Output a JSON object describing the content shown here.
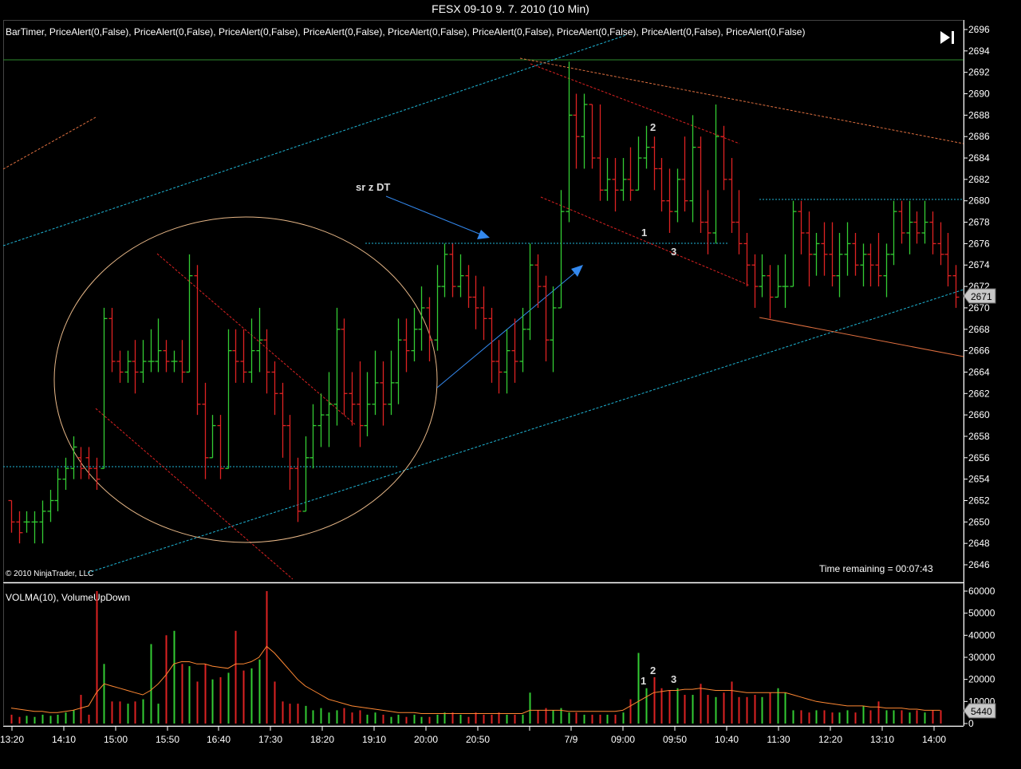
{
  "window": {
    "title": "FESX 09-10  9. 7. 2010 (10 Min)"
  },
  "price_panel": {
    "indicators": "BarTimer, PriceAlert(0,False), PriceAlert(0,False), PriceAlert(0,False), PriceAlert(0,False), PriceAlert(0,False), PriceAlert(0,False), PriceAlert(0,False), PriceAlert(0,False), PriceAlert(0,False)",
    "copyright": "© 2010 NinjaTrader, LLC",
    "time_remaining": "Time remaining = 00:07:43",
    "last_price_label": "2671",
    "annotation_text": "sr z DT",
    "wave_labels": [
      "1",
      "2",
      "3"
    ]
  },
  "volume_panel": {
    "indicators": "VOLMA(10), VolumeUpDown",
    "last_volume_label": "5440"
  },
  "colors": {
    "up_bar": "#33cc33",
    "down_bar": "#dd2222",
    "cyan_line": "#1fb6d6",
    "orange_line": "#e07040",
    "ellipse": "#e8b888",
    "arrow": "#3388ee",
    "volma": "#ff8833",
    "axis": "#ffffff"
  },
  "icons": {
    "play_to_end": "skip-to-end-icon"
  },
  "chart_data": [
    {
      "type": "ohlc",
      "panel": "price",
      "ylim": [
        2645,
        2697
      ],
      "y_ticks": [
        "2696",
        "2694",
        "2692",
        "2690",
        "2688",
        "2686",
        "2684",
        "2682",
        "2680",
        "2678",
        "2676",
        "2674",
        "2672",
        "2670",
        "2668",
        "2666",
        "2664",
        "2662",
        "2660",
        "2658",
        "2656",
        "2654",
        "2652",
        "2650",
        "2648",
        "2646"
      ],
      "x_ticks": [
        "13:20",
        "14:10",
        "15:00",
        "15:50",
        "16:40",
        "17:30",
        "18:20",
        "19:10",
        "20:00",
        "20:50",
        "7/9",
        "09:00",
        "09:50",
        "10:40",
        "11:30",
        "12:20",
        "13:10",
        "14:00"
      ],
      "bars": [
        [
          2652,
          2652,
          2649,
          2650
        ],
        [
          2650,
          2651,
          2648,
          2649
        ],
        [
          2650,
          2651,
          2649,
          2650
        ],
        [
          2650,
          2651,
          2648,
          2650
        ],
        [
          2650,
          2652,
          2648,
          2651
        ],
        [
          2651,
          2653,
          2650,
          2652
        ],
        [
          2652,
          2655,
          2651,
          2654
        ],
        [
          2654,
          2656,
          2653,
          2655
        ],
        [
          2655,
          2658,
          2654,
          2657
        ],
        [
          2656,
          2657,
          2654,
          2655
        ],
        [
          2656,
          2657,
          2654,
          2655
        ],
        [
          2655,
          2656,
          2653,
          2654
        ],
        [
          2655,
          2670,
          2655,
          2669
        ],
        [
          2669,
          2670,
          2664,
          2665
        ],
        [
          2665,
          2666,
          2663,
          2664
        ],
        [
          2664,
          2666,
          2663,
          2665
        ],
        [
          2665,
          2667,
          2662,
          2664
        ],
        [
          2664,
          2667,
          2663,
          2665
        ],
        [
          2665,
          2668,
          2664,
          2665
        ],
        [
          2665,
          2669,
          2664,
          2666
        ],
        [
          2666,
          2667,
          2664,
          2665
        ],
        [
          2665,
          2666,
          2664,
          2665
        ],
        [
          2665,
          2667,
          2663,
          2664
        ],
        [
          2664,
          2675,
          2664,
          2673
        ],
        [
          2673,
          2674,
          2660,
          2661
        ],
        [
          2661,
          2663,
          2654,
          2656
        ],
        [
          2656,
          2660,
          2656,
          2659
        ],
        [
          2659,
          2660,
          2654,
          2655
        ],
        [
          2655,
          2668,
          2655,
          2666
        ],
        [
          2666,
          2668,
          2663,
          2665
        ],
        [
          2665,
          2668,
          2663,
          2664
        ],
        [
          2664,
          2669,
          2663,
          2666
        ],
        [
          2666,
          2670,
          2664,
          2667
        ],
        [
          2667,
          2668,
          2662,
          2664
        ],
        [
          2664,
          2665,
          2660,
          2662
        ],
        [
          2662,
          2663,
          2656,
          2659
        ],
        [
          2659,
          2660,
          2653,
          2655
        ],
        [
          2655,
          2656,
          2650,
          2651
        ],
        [
          2651,
          2658,
          2651,
          2656
        ],
        [
          2656,
          2661,
          2655,
          2659
        ],
        [
          2659,
          2662,
          2657,
          2660
        ],
        [
          2660,
          2664,
          2657,
          2661
        ],
        [
          2661,
          2670,
          2659,
          2668
        ],
        [
          2668,
          2669,
          2660,
          2662
        ],
        [
          2662,
          2664,
          2659,
          2661
        ],
        [
          2661,
          2665,
          2657,
          2659
        ],
        [
          2659,
          2664,
          2658,
          2661
        ],
        [
          2661,
          2666,
          2660,
          2663
        ],
        [
          2663,
          2665,
          2659,
          2661
        ],
        [
          2661,
          2666,
          2660,
          2663
        ],
        [
          2663,
          2669,
          2661,
          2667
        ],
        [
          2667,
          2669,
          2664,
          2666
        ],
        [
          2666,
          2670,
          2665,
          2668
        ],
        [
          2668,
          2672,
          2666,
          2670
        ],
        [
          2670,
          2671,
          2665,
          2667
        ],
        [
          2667,
          2674,
          2666,
          2672
        ],
        [
          2672,
          2676,
          2671,
          2675
        ],
        [
          2675,
          2676,
          2671,
          2672
        ],
        [
          2672,
          2675,
          2671,
          2673
        ],
        [
          2673,
          2674,
          2670,
          2671
        ],
        [
          2671,
          2673,
          2668,
          2670
        ],
        [
          2670,
          2672,
          2667,
          2669
        ],
        [
          2669,
          2670,
          2663,
          2665
        ],
        [
          2665,
          2667,
          2662,
          2664
        ],
        [
          2664,
          2668,
          2662,
          2666
        ],
        [
          2666,
          2669,
          2663,
          2665
        ],
        [
          2665,
          2670,
          2664,
          2668
        ],
        [
          2668,
          2676,
          2667,
          2674
        ],
        [
          2674,
          2675,
          2670,
          2672
        ],
        [
          2672,
          2673,
          2665,
          2667
        ],
        [
          2667,
          2672,
          2664,
          2670
        ],
        [
          2670,
          2681,
          2670,
          2679
        ],
        [
          2679,
          2693,
          2678,
          2688
        ],
        [
          2688,
          2690,
          2683,
          2686
        ],
        [
          2686,
          2690,
          2683,
          2689
        ],
        [
          2689,
          2689,
          2683,
          2684
        ],
        [
          2684,
          2689,
          2680,
          2681
        ],
        [
          2681,
          2684,
          2680,
          2682
        ],
        [
          2682,
          2684,
          2679,
          2681
        ],
        [
          2681,
          2684,
          2680,
          2682
        ],
        [
          2682,
          2685,
          2680,
          2681
        ],
        [
          2681,
          2686,
          2681,
          2684
        ],
        [
          2684,
          2687,
          2683,
          2685
        ],
        [
          2685,
          2686,
          2681,
          2683
        ],
        [
          2683,
          2684,
          2679,
          2680
        ],
        [
          2680,
          2683,
          2677,
          2679
        ],
        [
          2679,
          2683,
          2678,
          2682
        ],
        [
          2682,
          2686,
          2679,
          2680
        ],
        [
          2680,
          2688,
          2678,
          2685
        ],
        [
          2685,
          2686,
          2677,
          2678
        ],
        [
          2678,
          2681,
          2675,
          2677
        ],
        [
          2677,
          2689,
          2676,
          2686
        ],
        [
          2686,
          2687,
          2681,
          2682
        ],
        [
          2682,
          2684,
          2677,
          2678
        ],
        [
          2678,
          2681,
          2675,
          2676
        ],
        [
          2676,
          2677,
          2672,
          2674
        ],
        [
          2674,
          2675,
          2670,
          2672
        ],
        [
          2672,
          2675,
          2671,
          2673
        ],
        [
          2673,
          2674,
          2669,
          2671
        ],
        [
          2671,
          2674,
          2671,
          2672
        ],
        [
          2672,
          2675,
          2670,
          2672
        ],
        [
          2672,
          2680,
          2672,
          2679
        ],
        [
          2679,
          2680,
          2675,
          2677
        ],
        [
          2677,
          2679,
          2672,
          2675
        ],
        [
          2675,
          2677,
          2673,
          2676
        ],
        [
          2676,
          2678,
          2673,
          2675
        ],
        [
          2675,
          2678,
          2672,
          2673
        ],
        [
          2673,
          2677,
          2671,
          2675
        ],
        [
          2675,
          2678,
          2673,
          2676
        ],
        [
          2676,
          2677,
          2673,
          2674
        ],
        [
          2674,
          2676,
          2672,
          2675
        ],
        [
          2675,
          2676,
          2672,
          2674
        ],
        [
          2674,
          2677,
          2672,
          2673
        ],
        [
          2673,
          2676,
          2671,
          2675
        ],
        [
          2675,
          2680,
          2674,
          2679
        ],
        [
          2679,
          2680,
          2676,
          2677
        ],
        [
          2677,
          2680,
          2675,
          2678
        ],
        [
          2678,
          2679,
          2676,
          2677
        ],
        [
          2677,
          2680,
          2676,
          2678
        ],
        [
          2678,
          2679,
          2675,
          2676
        ],
        [
          2676,
          2678,
          2674,
          2675
        ],
        [
          2675,
          2677,
          2672,
          2673
        ],
        [
          2673,
          2674,
          2670,
          2671
        ]
      ],
      "last_price": 2671,
      "annotations": [
        "sr z DT",
        "1",
        "2",
        "3"
      ]
    },
    {
      "type": "bar",
      "panel": "volume",
      "ylim": [
        0,
        61000
      ],
      "y_ticks": [
        "60000",
        "50000",
        "40000",
        "30000",
        "20000",
        "10000",
        "0"
      ],
      "values": [
        4000,
        3000,
        3500,
        3000,
        4000,
        3500,
        4000,
        5000,
        6000,
        13000,
        4000,
        60000,
        27000,
        10000,
        10000,
        9000,
        10000,
        11000,
        36000,
        9000,
        40000,
        42000,
        27000,
        26000,
        19000,
        27000,
        20000,
        21000,
        23000,
        42000,
        24000,
        25000,
        29000,
        60000,
        19000,
        10000,
        9000,
        9000,
        8000,
        6000,
        7000,
        5000,
        6000,
        7000,
        5000,
        6000,
        4000,
        5000,
        4000,
        3000,
        4000,
        3000,
        4000,
        3000,
        3000,
        4000,
        5000,
        5000,
        4000,
        3000,
        5000,
        4000,
        4000,
        5000,
        4000,
        4000,
        4000,
        14000,
        6000,
        7000,
        6000,
        7000,
        5000,
        5000,
        4000,
        4000,
        4000,
        4000,
        4000,
        5000,
        11000,
        32000,
        16000,
        21000,
        16000,
        15000,
        16000,
        13000,
        13000,
        18000,
        13000,
        12000,
        14000,
        19000,
        12000,
        12000,
        13000,
        12000,
        14000,
        16000,
        14000,
        6000,
        6000,
        5000,
        6000,
        6000,
        5000,
        5000,
        6000,
        5000,
        8000,
        6000,
        10000,
        6000,
        6000,
        6000,
        5000,
        6000,
        5000,
        6000,
        6000
      ],
      "volma": [
        7000,
        6500,
        6000,
        5500,
        5500,
        5000,
        5000,
        5500,
        6000,
        7000,
        8000,
        14000,
        18000,
        17000,
        16000,
        15000,
        14000,
        13000,
        15000,
        18000,
        22000,
        27000,
        28000,
        28000,
        27000,
        27000,
        26000,
        25500,
        25000,
        27000,
        27000,
        28000,
        30000,
        35000,
        32000,
        28000,
        24000,
        20000,
        17000,
        15000,
        13000,
        11000,
        10000,
        9000,
        8000,
        7500,
        7000,
        6500,
        6000,
        5500,
        5000,
        5000,
        5000,
        4500,
        4500,
        4500,
        4500,
        4500,
        4500,
        4500,
        4500,
        4500,
        4500,
        4500,
        4500,
        4500,
        4500,
        6000,
        6000,
        6000,
        6000,
        6000,
        5500,
        5500,
        5500,
        5500,
        5500,
        5500,
        5500,
        6000,
        8000,
        10000,
        12000,
        14000,
        14500,
        15000,
        15000,
        15500,
        15500,
        16000,
        15500,
        15000,
        15000,
        15000,
        14500,
        14000,
        14000,
        14000,
        14000,
        14000,
        14000,
        13000,
        12000,
        11000,
        10000,
        9500,
        9000,
        8500,
        8000,
        8000,
        8000,
        7500,
        7500,
        7000,
        7000,
        7000,
        6500,
        6500,
        6000,
        6000,
        6000
      ],
      "last_value": 5440
    }
  ]
}
